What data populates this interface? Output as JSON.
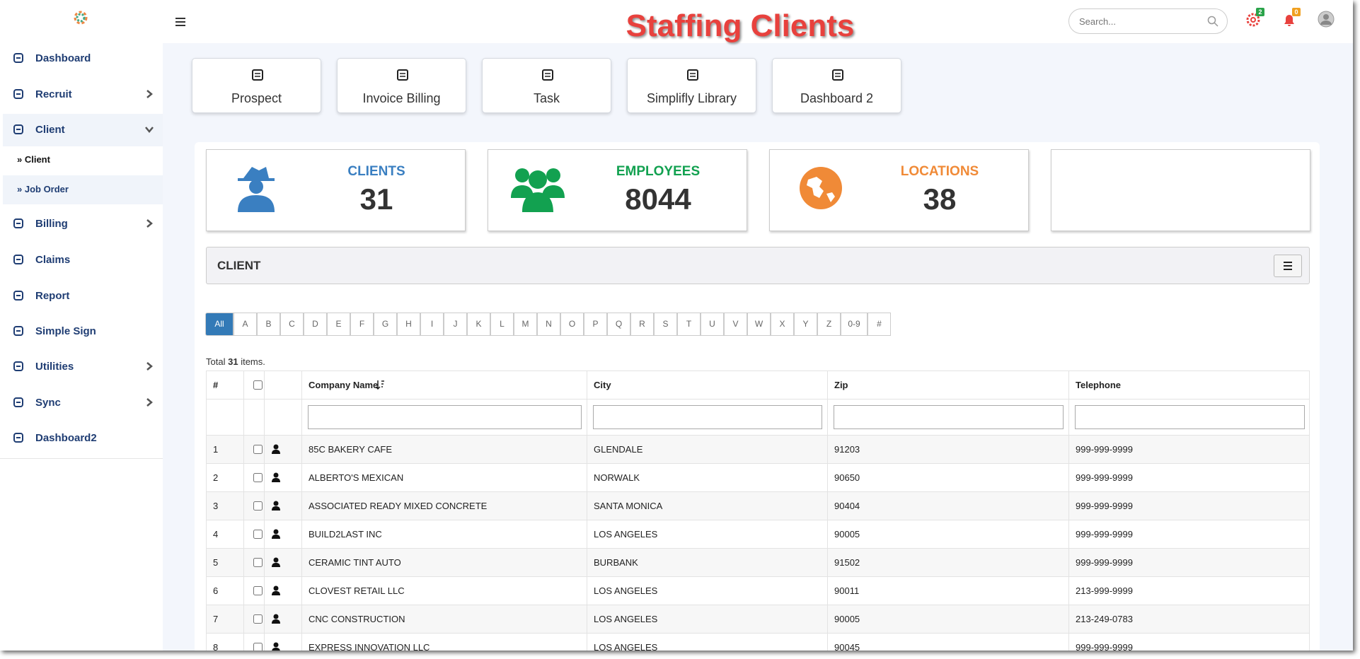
{
  "header": {
    "title": "Staffing Clients",
    "search_placeholder": "Search...",
    "badges": [
      "2",
      "0"
    ]
  },
  "sidebar": {
    "items": [
      "Dashboard",
      "Recruit",
      "Client",
      "Billing",
      "Claims",
      "Report",
      "Simple Sign",
      "Utilities",
      "Sync",
      "Dashboard2"
    ],
    "subitems": [
      "» Client",
      "» Job Order"
    ]
  },
  "quick_links": [
    "Prospect",
    "Invoice Billing",
    "Task",
    "Simplifly Library",
    "Dashboard 2"
  ],
  "stats": [
    {
      "label": "CLIENTS",
      "value": 31
    },
    {
      "label": "EMPLOYEES",
      "value": 8044
    },
    {
      "label": "LOCATIONS",
      "value": 38
    }
  ],
  "panel": {
    "title": "CLIENT"
  },
  "alphabet": [
    "All",
    "A",
    "B",
    "C",
    "D",
    "E",
    "F",
    "G",
    "H",
    "I",
    "J",
    "K",
    "L",
    "M",
    "N",
    "O",
    "P",
    "Q",
    "R",
    "S",
    "T",
    "U",
    "V",
    "W",
    "X",
    "Y",
    "Z",
    "0-9",
    "#"
  ],
  "total": {
    "prefix": "Total",
    "count": 31,
    "suffix": "items."
  },
  "table": {
    "columns": [
      "#",
      "Company Name",
      "City",
      "Zip",
      "Telephone"
    ],
    "rows": [
      [
        1,
        "85C BAKERY CAFE",
        "GLENDALE",
        "91203",
        "999-999-9999"
      ],
      [
        2,
        "ALBERTO'S MEXICAN",
        "NORWALK",
        "90650",
        "999-999-9999"
      ],
      [
        3,
        "ASSOCIATED READY MIXED CONCRETE",
        "SANTA MONICA",
        "90404",
        "999-999-9999"
      ],
      [
        4,
        "BUILD2LAST INC",
        "LOS ANGELES",
        "90005",
        "999-999-9999"
      ],
      [
        5,
        "CERAMIC TINT AUTO",
        "BURBANK",
        "91502",
        "999-999-9999"
      ],
      [
        6,
        "CLOVEST RETAIL LLC",
        "LOS ANGELES",
        "90011",
        "213-999-9999"
      ],
      [
        7,
        "CNC CONSTRUCTION",
        "LOS ANGELES",
        "90005",
        "213-249-0783"
      ],
      [
        8,
        "EXPRESS INNOVATION LLC",
        "LOS ANGELES",
        "90045",
        "999-999-9999"
      ]
    ]
  }
}
